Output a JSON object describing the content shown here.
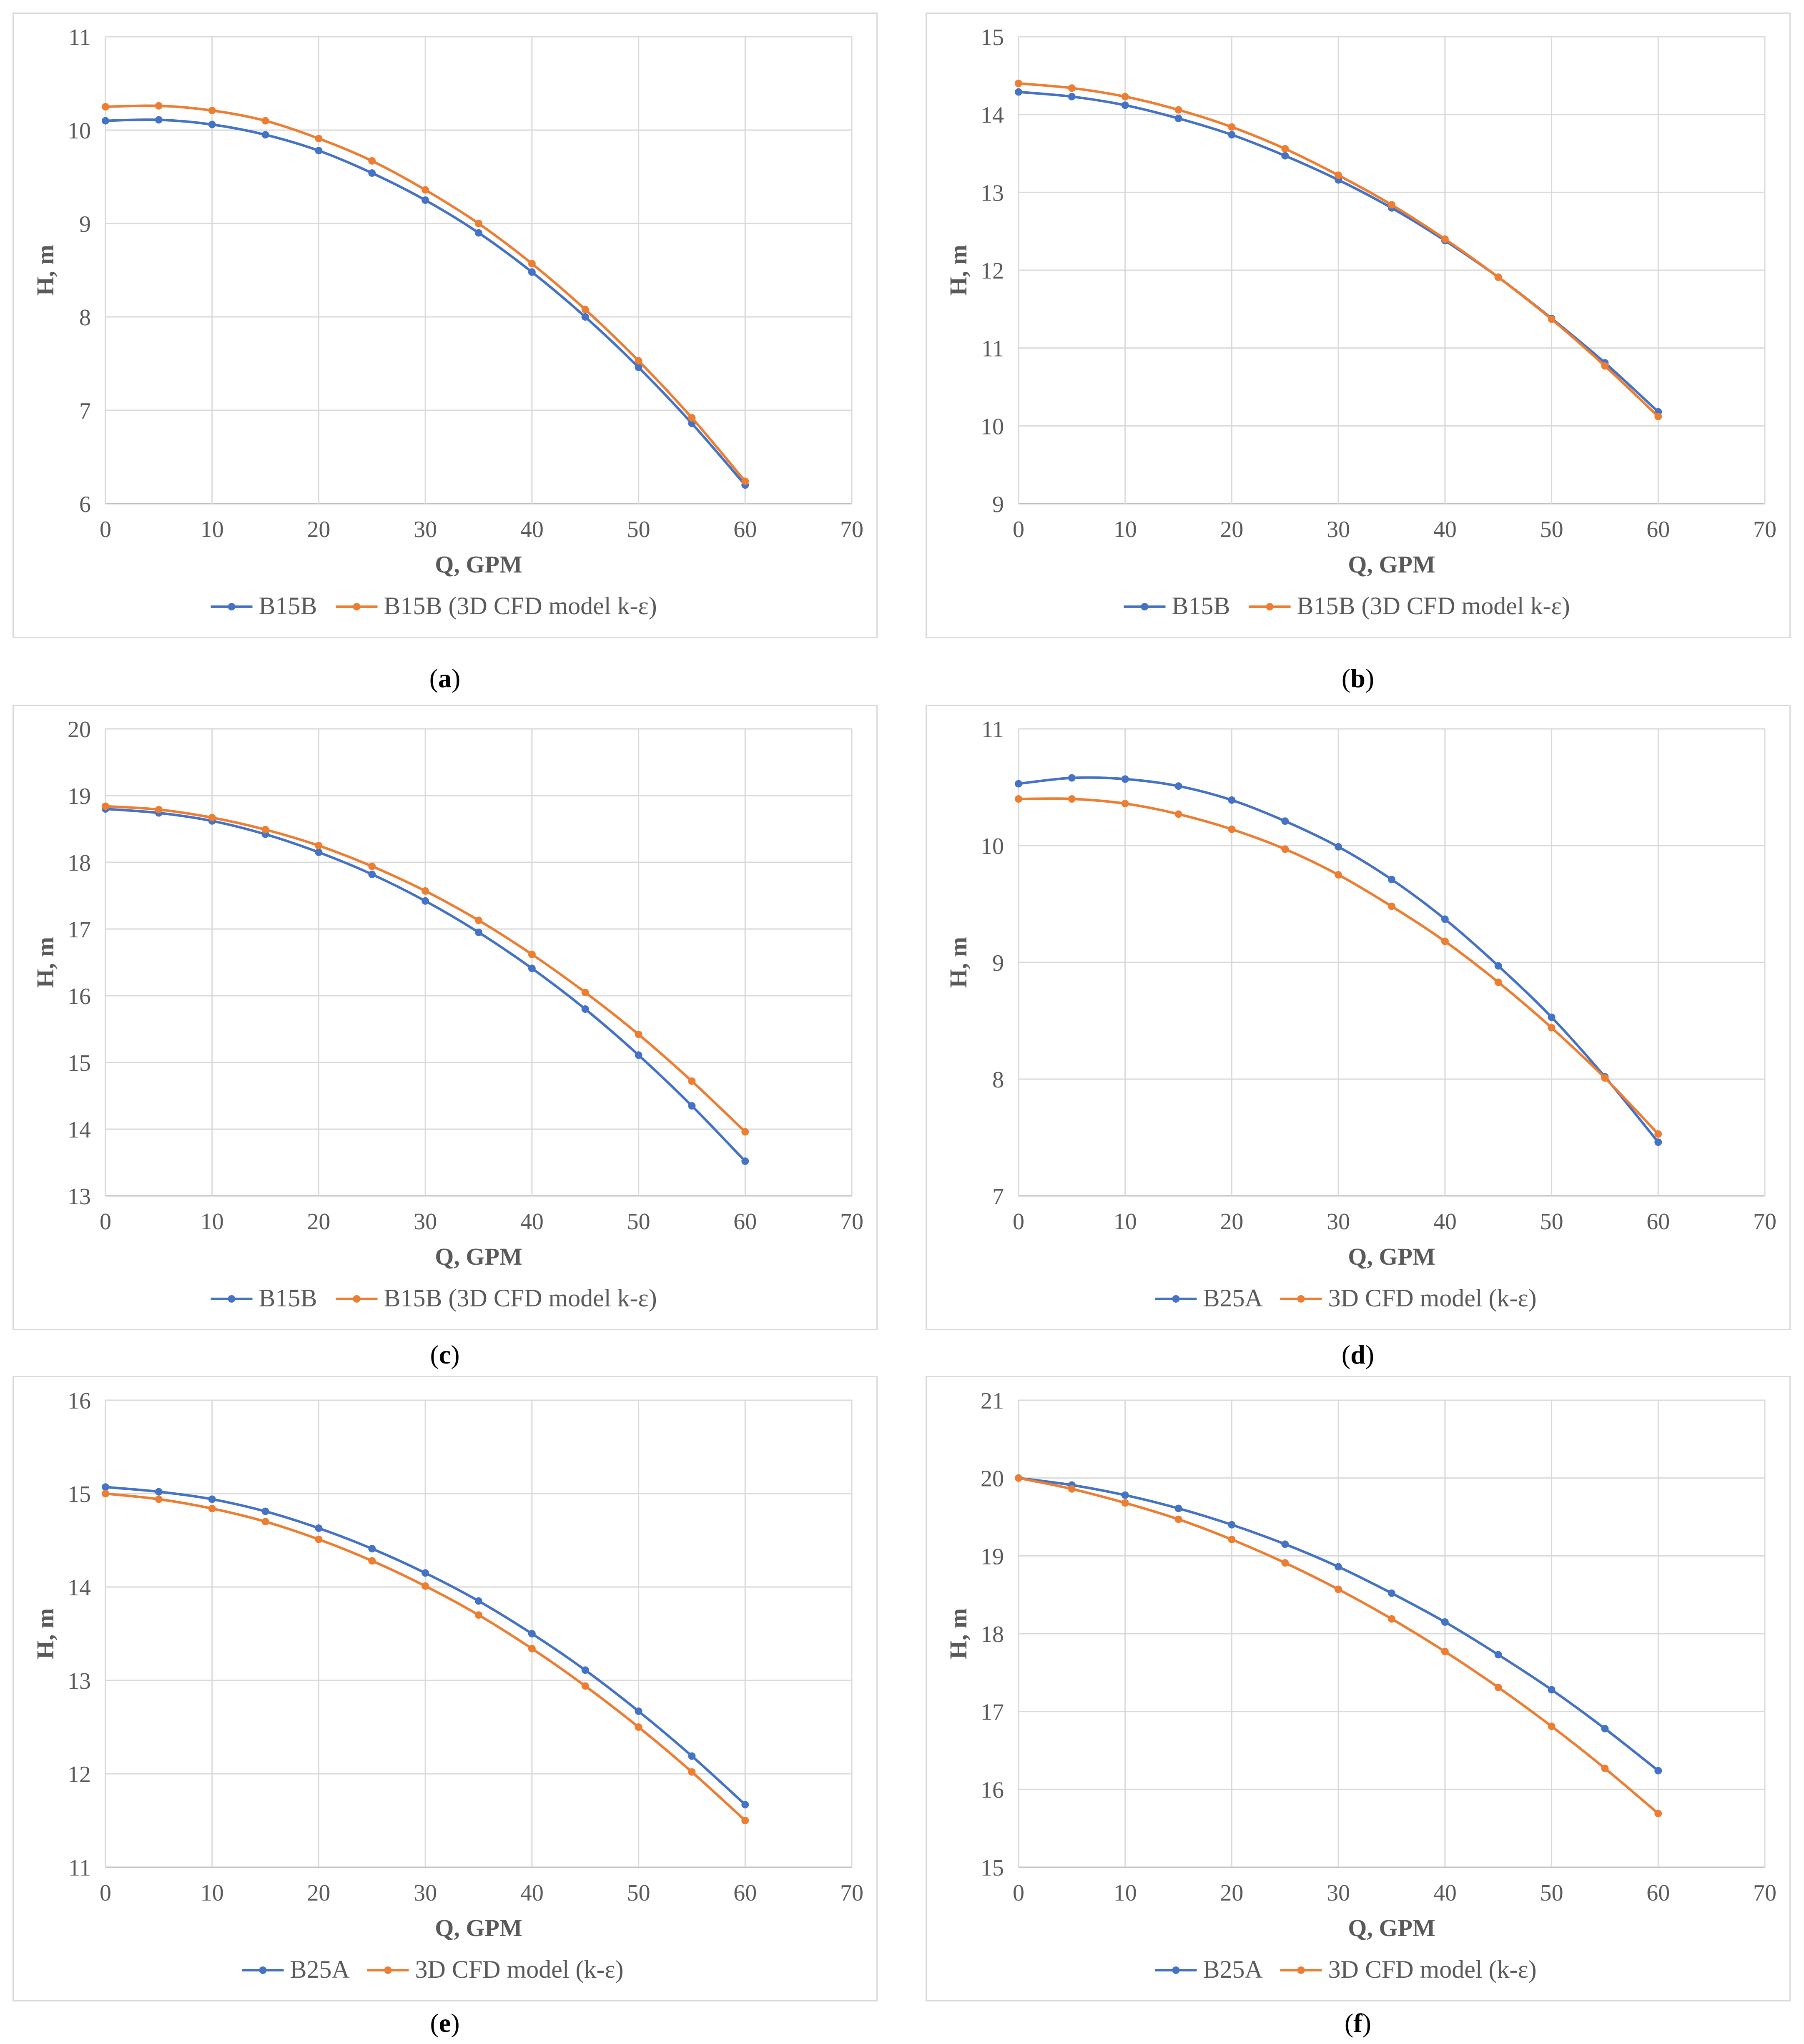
{
  "colors": {
    "series1": "#4472C4",
    "series2": "#ED7D31",
    "grid": "#d9d9d9",
    "axis": "#bfbfbf",
    "text": "#595959"
  },
  "chart_data": [
    {
      "type": "line",
      "panel": "a",
      "xlabel": "Q, GPM",
      "ylabel": "H, m",
      "xlim": [
        0,
        70
      ],
      "ylim": [
        6,
        11
      ],
      "xticks": [
        "0",
        "10",
        "20",
        "30",
        "40",
        "50",
        "60",
        "70"
      ],
      "yticks": [
        "6",
        "7",
        "8",
        "9",
        "10",
        "11"
      ],
      "x": [
        0,
        5,
        10,
        15,
        20,
        25,
        30,
        35,
        40,
        45,
        50,
        55,
        60
      ],
      "series": [
        {
          "name": "B15B",
          "values": [
            10.1,
            10.11,
            10.06,
            9.95,
            9.78,
            9.54,
            9.25,
            8.9,
            8.48,
            8.0,
            7.46,
            6.86,
            6.2
          ]
        },
        {
          "name": "B15B (3D CFD model k-ε)",
          "values": [
            10.25,
            10.26,
            10.21,
            10.1,
            9.91,
            9.67,
            9.36,
            9.0,
            8.57,
            8.08,
            7.53,
            6.92,
            6.24
          ]
        }
      ]
    },
    {
      "type": "line",
      "panel": "b",
      "xlabel": "Q, GPM",
      "ylabel": "H, m",
      "xlim": [
        0,
        70
      ],
      "ylim": [
        9,
        15
      ],
      "xticks": [
        "0",
        "10",
        "20",
        "30",
        "40",
        "50",
        "60",
        "70"
      ],
      "yticks": [
        "9",
        "10",
        "11",
        "12",
        "13",
        "14",
        "15"
      ],
      "x": [
        0,
        5,
        10,
        15,
        20,
        25,
        30,
        35,
        40,
        45,
        50,
        55,
        60
      ],
      "series": [
        {
          "name": "B15B",
          "values": [
            14.29,
            14.23,
            14.12,
            13.95,
            13.74,
            13.47,
            13.16,
            12.8,
            12.38,
            11.91,
            11.38,
            10.81,
            10.18
          ]
        },
        {
          "name": "B15B (3D CFD model k-ε)",
          "values": [
            14.4,
            14.34,
            14.23,
            14.06,
            13.84,
            13.56,
            13.22,
            12.84,
            12.4,
            11.91,
            11.37,
            10.77,
            10.12
          ]
        }
      ]
    },
    {
      "type": "line",
      "panel": "c",
      "xlabel": "Q, GPM",
      "ylabel": "H, m",
      "xlim": [
        0,
        70
      ],
      "ylim": [
        13,
        20
      ],
      "xticks": [
        "0",
        "10",
        "20",
        "30",
        "40",
        "50",
        "60",
        "70"
      ],
      "yticks": [
        "13",
        "14",
        "15",
        "16",
        "17",
        "18",
        "19",
        "20"
      ],
      "x": [
        0,
        5,
        10,
        15,
        20,
        25,
        30,
        35,
        40,
        45,
        50,
        55,
        60
      ],
      "series": [
        {
          "name": "B15B",
          "values": [
            18.8,
            18.74,
            18.62,
            18.42,
            18.15,
            17.82,
            17.42,
            16.95,
            16.41,
            15.8,
            15.11,
            14.35,
            13.52
          ]
        },
        {
          "name": "B15B (3D CFD model k-ε)",
          "values": [
            18.84,
            18.79,
            18.67,
            18.49,
            18.25,
            17.94,
            17.57,
            17.13,
            16.62,
            16.05,
            15.42,
            14.72,
            13.96
          ]
        }
      ]
    },
    {
      "type": "line",
      "panel": "d",
      "xlabel": "Q, GPM",
      "ylabel": "H, m",
      "xlim": [
        0,
        70
      ],
      "ylim": [
        7,
        11
      ],
      "xticks": [
        "0",
        "10",
        "20",
        "30",
        "40",
        "50",
        "60",
        "70"
      ],
      "yticks": [
        "7",
        "8",
        "9",
        "10",
        "11"
      ],
      "x": [
        0,
        5,
        10,
        15,
        20,
        25,
        30,
        35,
        40,
        45,
        50,
        55,
        60
      ],
      "series": [
        {
          "name": "B25A",
          "values": [
            10.53,
            10.58,
            10.57,
            10.51,
            10.39,
            10.21,
            9.99,
            9.71,
            9.37,
            8.97,
            8.53,
            8.02,
            7.46
          ]
        },
        {
          "name": "3D CFD model (k-ε)",
          "values": [
            10.4,
            10.4,
            10.36,
            10.27,
            10.14,
            9.97,
            9.75,
            9.48,
            9.18,
            8.83,
            8.44,
            8.01,
            7.53
          ]
        }
      ]
    },
    {
      "type": "line",
      "panel": "e",
      "xlabel": "Q, GPM",
      "ylabel": "H, m",
      "xlim": [
        0,
        70
      ],
      "ylim": [
        11,
        16
      ],
      "xticks": [
        "0",
        "10",
        "20",
        "30",
        "40",
        "50",
        "60",
        "70"
      ],
      "yticks": [
        "11",
        "12",
        "13",
        "14",
        "15",
        "16"
      ],
      "x": [
        0,
        5,
        10,
        15,
        20,
        25,
        30,
        35,
        40,
        45,
        50,
        55,
        60
      ],
      "series": [
        {
          "name": "B25A",
          "values": [
            15.07,
            15.02,
            14.94,
            14.81,
            14.63,
            14.41,
            14.15,
            13.85,
            13.5,
            13.11,
            12.67,
            12.19,
            11.67
          ]
        },
        {
          "name": "3D CFD model (k-ε)",
          "values": [
            15.0,
            14.94,
            14.84,
            14.7,
            14.51,
            14.28,
            14.01,
            13.7,
            13.34,
            12.94,
            12.5,
            12.02,
            11.5
          ]
        }
      ]
    },
    {
      "type": "line",
      "panel": "f",
      "xlabel": "Q, GPM",
      "ylabel": "H, m",
      "xlim": [
        0,
        70
      ],
      "ylim": [
        15,
        21
      ],
      "xticks": [
        "0",
        "10",
        "20",
        "30",
        "40",
        "50",
        "60",
        "70"
      ],
      "yticks": [
        "15",
        "16",
        "17",
        "18",
        "19",
        "20",
        "21"
      ],
      "x": [
        0,
        5,
        10,
        15,
        20,
        25,
        30,
        35,
        40,
        45,
        50,
        55,
        60
      ],
      "series": [
        {
          "name": "B25A",
          "values": [
            20.0,
            19.91,
            19.78,
            19.61,
            19.4,
            19.15,
            18.86,
            18.52,
            18.15,
            17.73,
            17.28,
            16.78,
            16.24
          ]
        },
        {
          "name": "3D CFD model (k-ε)",
          "values": [
            20.0,
            19.86,
            19.68,
            19.47,
            19.21,
            18.91,
            18.57,
            18.19,
            17.77,
            17.31,
            16.81,
            16.27,
            15.69
          ]
        }
      ]
    }
  ],
  "captions": [
    {
      "open": "(",
      "letter": "a",
      "close": ")"
    },
    {
      "open": "(",
      "letter": "b",
      "close": ")"
    },
    {
      "open": "(",
      "letter": "c",
      "close": ")"
    },
    {
      "open": "(",
      "letter": "d",
      "close": ")"
    },
    {
      "open": "(",
      "letter": "e",
      "close": ")"
    },
    {
      "open": "(",
      "letter": "f",
      "close": ")"
    }
  ]
}
